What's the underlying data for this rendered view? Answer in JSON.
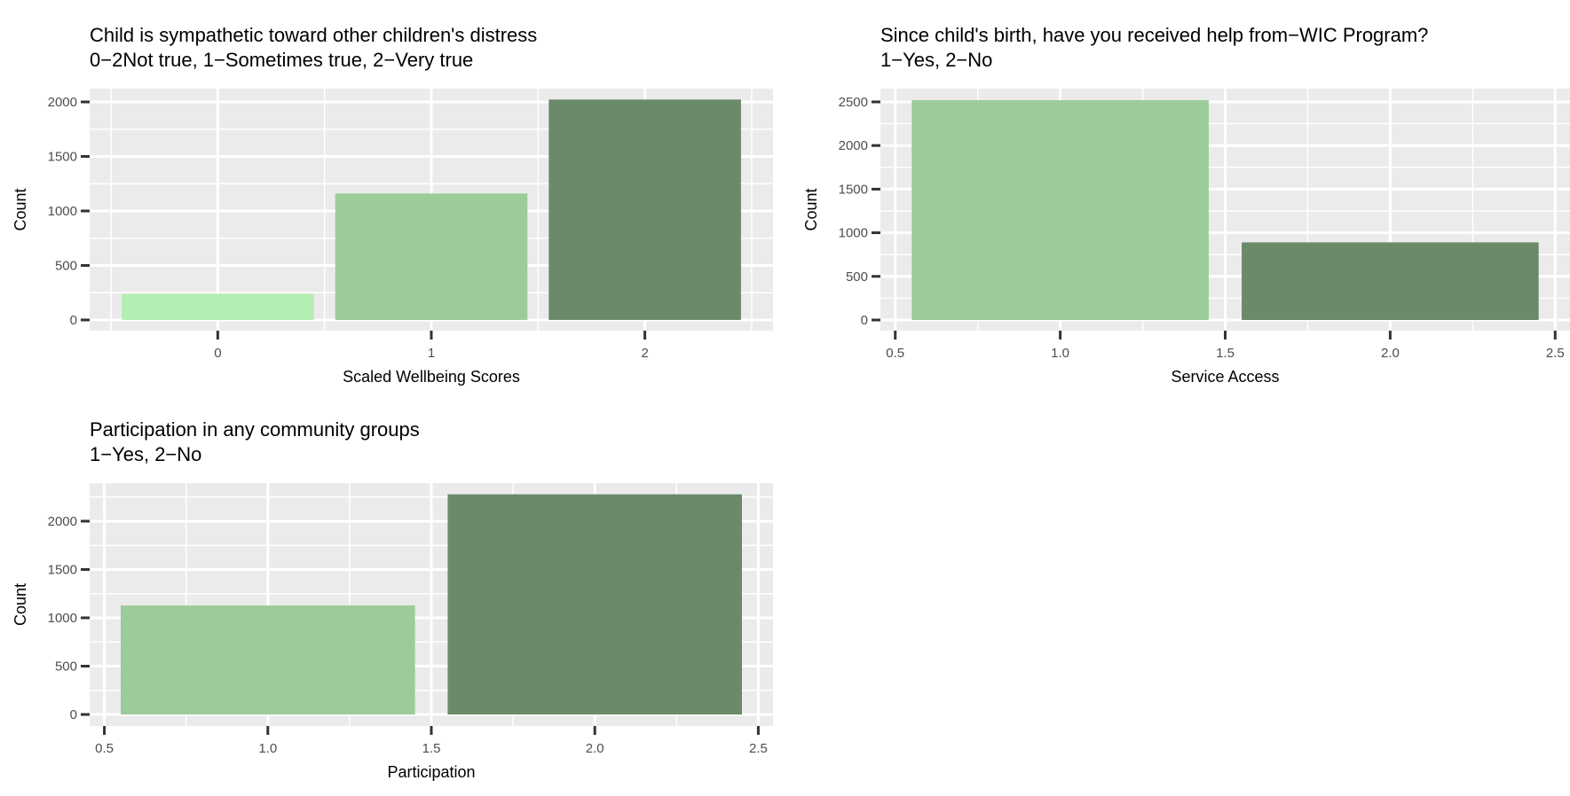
{
  "chart_data": [
    {
      "type": "bar",
      "title": "Child is sympathetic toward other children's distress",
      "subtitle": " 0−2Not true, 1−Sometimes true, 2−Very true",
      "xlabel": "Scaled Wellbeing Scores",
      "ylabel": "Count",
      "x_scale": "discrete",
      "categories": [
        "0",
        "1",
        "2"
      ],
      "x": [
        0,
        1,
        2
      ],
      "values": [
        240,
        1160,
        2022
      ],
      "colors": [
        "#b3eeb3",
        "#9bcc99",
        "#6a8a6a"
      ],
      "xticks": [
        "0",
        "1",
        "2"
      ],
      "xtick_values": [
        0,
        1,
        2
      ],
      "yticks": [
        "0",
        "500",
        "1000",
        "1500",
        "2000"
      ],
      "ytick_values": [
        0,
        500,
        1000,
        1500,
        2000
      ],
      "xlim": [
        -0.6,
        2.6
      ],
      "ylim": [
        -98,
        2122
      ],
      "grid": true
    },
    {
      "type": "bar",
      "title": "Since child's birth, have you received help from−WIC Program?",
      "subtitle": " 1−Yes, 2−No",
      "xlabel": "Service Access",
      "ylabel": "Count",
      "x_scale": "continuous",
      "x": [
        1,
        2
      ],
      "values": [
        2520,
        890
      ],
      "colors": [
        "#9bcc99",
        "#6a8a6a"
      ],
      "xticks": [
        "0.5",
        "1.0",
        "1.5",
        "2.0",
        "2.5"
      ],
      "xtick_values": [
        0.5,
        1.0,
        1.5,
        2.0,
        2.5
      ],
      "yticks": [
        "0",
        "500",
        "1000",
        "1500",
        "2000",
        "2500"
      ],
      "ytick_values": [
        0,
        500,
        1000,
        1500,
        2000,
        2500
      ],
      "xlim": [
        0.455,
        2.545
      ],
      "ylim": [
        -122,
        2652
      ],
      "grid": true
    },
    {
      "type": "bar",
      "title": "Participation in any community groups",
      "subtitle": " 1−Yes, 2−No",
      "xlabel": "Participation",
      "ylabel": "Count",
      "x_scale": "continuous",
      "x": [
        1,
        2
      ],
      "values": [
        1128,
        2278
      ],
      "colors": [
        "#9bcc99",
        "#6a8a6a"
      ],
      "xticks": [
        "0.5",
        "1.0",
        "1.5",
        "2.0",
        "2.5"
      ],
      "xtick_values": [
        0.5,
        1.0,
        1.5,
        2.0,
        2.5
      ],
      "yticks": [
        "0",
        "500",
        "1000",
        "1500",
        "2000"
      ],
      "ytick_values": [
        0,
        500,
        1000,
        1500,
        2000
      ],
      "xlim": [
        0.455,
        2.545
      ],
      "ylim": [
        -119,
        2394
      ],
      "grid": true
    }
  ],
  "panel_color": "#ebebeb"
}
